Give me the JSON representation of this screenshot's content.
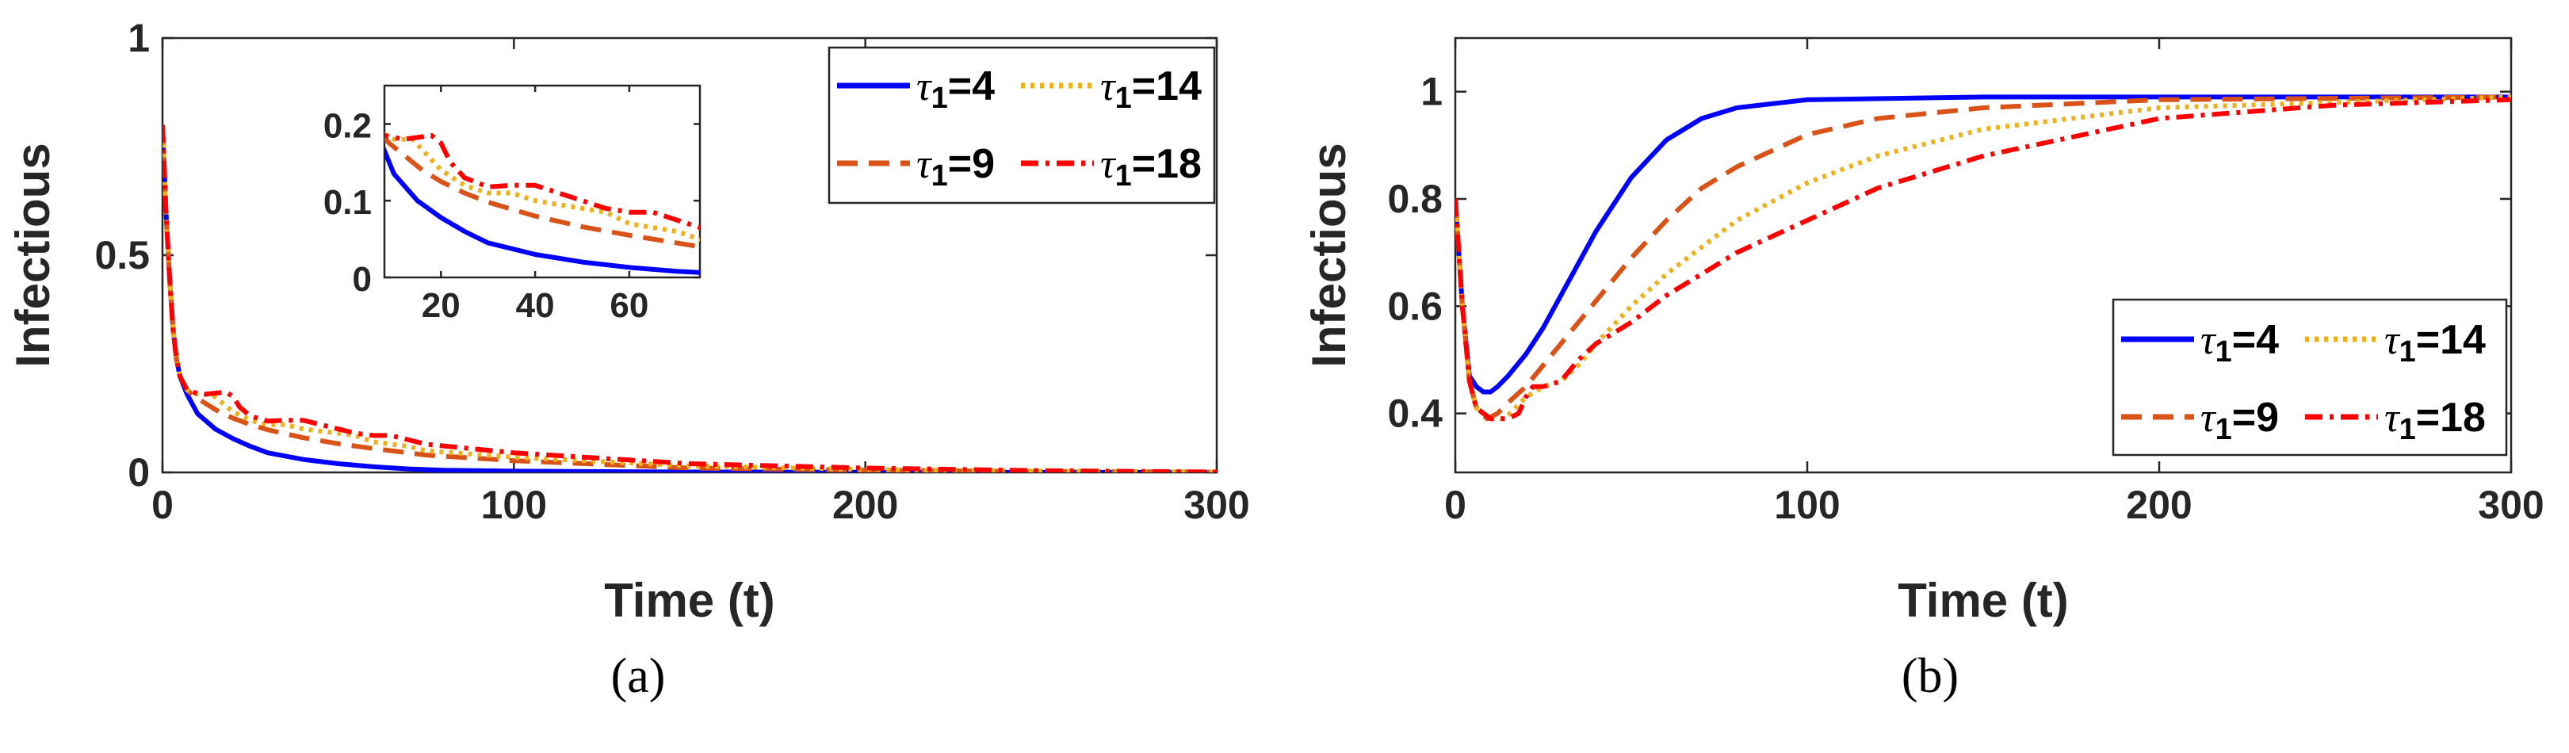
{
  "figure": {
    "panel_labels": [
      "(a)",
      "(b)"
    ]
  },
  "chart_data": [
    {
      "type": "line",
      "panel": "(a)",
      "xlabel": "Time (t)",
      "ylabel": "Infectious",
      "xlim": [
        0,
        300
      ],
      "ylim": [
        0,
        1
      ],
      "xticks": [
        0,
        100,
        200,
        300
      ],
      "yticks": [
        0,
        0.5,
        1
      ],
      "ytick_labels": [
        "0",
        "0.5",
        "1"
      ],
      "legend_position": "top-right",
      "series": [
        {
          "name": "τ1=4",
          "tau": "τ",
          "sub": "1",
          "value": "=4",
          "color": "#0000ff",
          "style": "solid",
          "points": [
            [
              0,
              0.8
            ],
            [
              1,
              0.6
            ],
            [
              2,
              0.45
            ],
            [
              3,
              0.33
            ],
            [
              4,
              0.26
            ],
            [
              5,
              0.22
            ],
            [
              7,
              0.18
            ],
            [
              10,
              0.135
            ],
            [
              15,
              0.1
            ],
            [
              20,
              0.078
            ],
            [
              25,
              0.06
            ],
            [
              30,
              0.045
            ],
            [
              40,
              0.03
            ],
            [
              50,
              0.02
            ],
            [
              60,
              0.013
            ],
            [
              70,
              0.008
            ],
            [
              80,
              0.005
            ],
            [
              100,
              0.003
            ],
            [
              150,
              0.001
            ],
            [
              200,
              0.0005
            ],
            [
              300,
              0
            ]
          ]
        },
        {
          "name": "τ1=9",
          "tau": "τ",
          "sub": "1",
          "value": "=9",
          "color": "#d95319",
          "style": "dashed",
          "points": [
            [
              0,
              0.8
            ],
            [
              1,
              0.6
            ],
            [
              2,
              0.45
            ],
            [
              3,
              0.33
            ],
            [
              4,
              0.26
            ],
            [
              5,
              0.22
            ],
            [
              7,
              0.19
            ],
            [
              9,
              0.175
            ],
            [
              12,
              0.16
            ],
            [
              16,
              0.14
            ],
            [
              20,
              0.125
            ],
            [
              25,
              0.11
            ],
            [
              30,
              0.098
            ],
            [
              40,
              0.08
            ],
            [
              50,
              0.066
            ],
            [
              60,
              0.055
            ],
            [
              70,
              0.045
            ],
            [
              75,
              0.04
            ],
            [
              100,
              0.027
            ],
            [
              150,
              0.01
            ],
            [
              200,
              0.005
            ],
            [
              250,
              0.002
            ],
            [
              300,
              0.001
            ]
          ]
        },
        {
          "name": "τ1=14",
          "tau": "τ",
          "sub": "1",
          "value": "=14",
          "color": "#edb120",
          "style": "dotted",
          "points": [
            [
              0,
              0.8
            ],
            [
              1,
              0.6
            ],
            [
              2,
              0.45
            ],
            [
              3,
              0.33
            ],
            [
              4,
              0.26
            ],
            [
              5,
              0.22
            ],
            [
              7,
              0.19
            ],
            [
              10,
              0.18
            ],
            [
              14,
              0.18
            ],
            [
              17,
              0.16
            ],
            [
              20,
              0.14
            ],
            [
              25,
              0.12
            ],
            [
              30,
              0.11
            ],
            [
              35,
              0.11
            ],
            [
              40,
              0.1
            ],
            [
              50,
              0.09
            ],
            [
              55,
              0.085
            ],
            [
              60,
              0.07
            ],
            [
              70,
              0.06
            ],
            [
              75,
              0.05
            ],
            [
              100,
              0.035
            ],
            [
              150,
              0.015
            ],
            [
              200,
              0.007
            ],
            [
              250,
              0.003
            ],
            [
              300,
              0.001
            ]
          ]
        },
        {
          "name": "τ1=18",
          "tau": "τ",
          "sub": "1",
          "value": "=18",
          "color": "#ff0000",
          "style": "dashdot",
          "points": [
            [
              0,
              0.8
            ],
            [
              1,
              0.6
            ],
            [
              2,
              0.45
            ],
            [
              3,
              0.33
            ],
            [
              4,
              0.26
            ],
            [
              5,
              0.22
            ],
            [
              7,
              0.19
            ],
            [
              8,
              0.185
            ],
            [
              12,
              0.18
            ],
            [
              18,
              0.185
            ],
            [
              20,
              0.175
            ],
            [
              22,
              0.15
            ],
            [
              25,
              0.13
            ],
            [
              30,
              0.118
            ],
            [
              35,
              0.12
            ],
            [
              40,
              0.12
            ],
            [
              45,
              0.11
            ],
            [
              50,
              0.1
            ],
            [
              55,
              0.09
            ],
            [
              60,
              0.085
            ],
            [
              65,
              0.085
            ],
            [
              70,
              0.075
            ],
            [
              75,
              0.065
            ],
            [
              100,
              0.045
            ],
            [
              150,
              0.02
            ],
            [
              200,
              0.01
            ],
            [
              250,
              0.004
            ],
            [
              300,
              0.001
            ]
          ]
        }
      ],
      "inset": {
        "xlim": [
          8,
          75
        ],
        "ylim": [
          0,
          0.25
        ],
        "xticks": [
          20,
          40,
          60
        ],
        "yticks": [
          0,
          0.1,
          0.2
        ],
        "ytick_labels": [
          "0",
          "0.1",
          "0.2"
        ]
      }
    },
    {
      "type": "line",
      "panel": "(b)",
      "xlabel": "Time (t)",
      "ylabel": "Infectious",
      "xlim": [
        0,
        300
      ],
      "ylim": [
        0.29,
        1.1
      ],
      "xticks": [
        0,
        100,
        200,
        300
      ],
      "yticks": [
        0.4,
        0.6,
        0.8,
        1
      ],
      "ytick_labels": [
        "0.4",
        "0.6",
        "0.8",
        "1"
      ],
      "legend_position": "bottom-right",
      "series": [
        {
          "name": "τ1=4",
          "tau": "τ",
          "sub": "1",
          "value": "=4",
          "color": "#0000ff",
          "style": "solid",
          "points": [
            [
              0,
              0.8
            ],
            [
              2,
              0.6
            ],
            [
              4,
              0.47
            ],
            [
              6,
              0.45
            ],
            [
              8,
              0.44
            ],
            [
              10,
              0.44
            ],
            [
              12,
              0.45
            ],
            [
              15,
              0.47
            ],
            [
              20,
              0.51
            ],
            [
              25,
              0.56
            ],
            [
              30,
              0.62
            ],
            [
              40,
              0.74
            ],
            [
              50,
              0.84
            ],
            [
              60,
              0.91
            ],
            [
              70,
              0.95
            ],
            [
              80,
              0.97
            ],
            [
              100,
              0.985
            ],
            [
              150,
              0.99
            ],
            [
              200,
              0.99
            ],
            [
              300,
              0.99
            ]
          ]
        },
        {
          "name": "τ1=9",
          "tau": "τ",
          "sub": "1",
          "value": "=9",
          "color": "#d95319",
          "style": "dashed",
          "points": [
            [
              0,
              0.8
            ],
            [
              2,
              0.6
            ],
            [
              4,
              0.46
            ],
            [
              6,
              0.41
            ],
            [
              9,
              0.39
            ],
            [
              12,
              0.4
            ],
            [
              15,
              0.42
            ],
            [
              20,
              0.45
            ],
            [
              25,
              0.49
            ],
            [
              30,
              0.53
            ],
            [
              40,
              0.61
            ],
            [
              50,
              0.69
            ],
            [
              60,
              0.76
            ],
            [
              70,
              0.82
            ],
            [
              80,
              0.86
            ],
            [
              100,
              0.92
            ],
            [
              120,
              0.95
            ],
            [
              150,
              0.97
            ],
            [
              200,
              0.985
            ],
            [
              300,
              0.99
            ]
          ]
        },
        {
          "name": "τ1=14",
          "tau": "τ",
          "sub": "1",
          "value": "=14",
          "color": "#edb120",
          "style": "dotted",
          "points": [
            [
              0,
              0.8
            ],
            [
              2,
              0.6
            ],
            [
              4,
              0.46
            ],
            [
              6,
              0.41
            ],
            [
              10,
              0.39
            ],
            [
              14,
              0.39
            ],
            [
              17,
              0.41
            ],
            [
              20,
              0.43
            ],
            [
              25,
              0.45
            ],
            [
              30,
              0.46
            ],
            [
              35,
              0.49
            ],
            [
              40,
              0.53
            ],
            [
              50,
              0.6
            ],
            [
              60,
              0.66
            ],
            [
              70,
              0.71
            ],
            [
              80,
              0.76
            ],
            [
              100,
              0.83
            ],
            [
              120,
              0.88
            ],
            [
              150,
              0.93
            ],
            [
              200,
              0.97
            ],
            [
              300,
              0.99
            ]
          ]
        },
        {
          "name": "τ1=18",
          "tau": "τ",
          "sub": "1",
          "value": "=18",
          "color": "#ff0000",
          "style": "dashdot",
          "points": [
            [
              0,
              0.8
            ],
            [
              2,
              0.6
            ],
            [
              4,
              0.46
            ],
            [
              6,
              0.41
            ],
            [
              10,
              0.39
            ],
            [
              15,
              0.39
            ],
            [
              18,
              0.4
            ],
            [
              20,
              0.43
            ],
            [
              22,
              0.45
            ],
            [
              25,
              0.45
            ],
            [
              30,
              0.46
            ],
            [
              35,
              0.5
            ],
            [
              40,
              0.53
            ],
            [
              50,
              0.57
            ],
            [
              60,
              0.62
            ],
            [
              70,
              0.66
            ],
            [
              80,
              0.7
            ],
            [
              100,
              0.76
            ],
            [
              120,
              0.82
            ],
            [
              150,
              0.88
            ],
            [
              200,
              0.95
            ],
            [
              250,
              0.975
            ],
            [
              300,
              0.985
            ]
          ]
        }
      ]
    }
  ]
}
